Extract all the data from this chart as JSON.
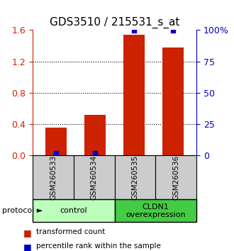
{
  "title": "GDS3510 / 215531_s_at",
  "samples": [
    "GSM260533",
    "GSM260534",
    "GSM260535",
    "GSM260536"
  ],
  "red_values": [
    0.36,
    0.52,
    1.54,
    1.38
  ],
  "blue_values": [
    2.0,
    2.0,
    99.5,
    99.5
  ],
  "left_ylim": [
    0,
    1.6
  ],
  "right_ylim": [
    0,
    100
  ],
  "left_yticks": [
    0,
    0.4,
    0.8,
    1.2,
    1.6
  ],
  "right_yticks": [
    0,
    25,
    50,
    75,
    100
  ],
  "right_yticklabels": [
    "0",
    "25",
    "50",
    "75",
    "100%"
  ],
  "red_color": "#cc2200",
  "blue_color": "#0000cc",
  "groups": [
    {
      "label": "control",
      "samples": [
        0,
        1
      ],
      "color": "#bbffbb"
    },
    {
      "label": "CLDN1\noverexpression",
      "samples": [
        2,
        3
      ],
      "color": "#44cc44"
    }
  ],
  "protocol_label": "protocol",
  "legend_red": "transformed count",
  "legend_blue": "percentile rank within the sample",
  "bg_color": "#ffffff",
  "plot_bg": "#ffffff",
  "tick_label_box_color": "#cccccc",
  "title_fontsize": 11,
  "axis_fontsize": 9
}
